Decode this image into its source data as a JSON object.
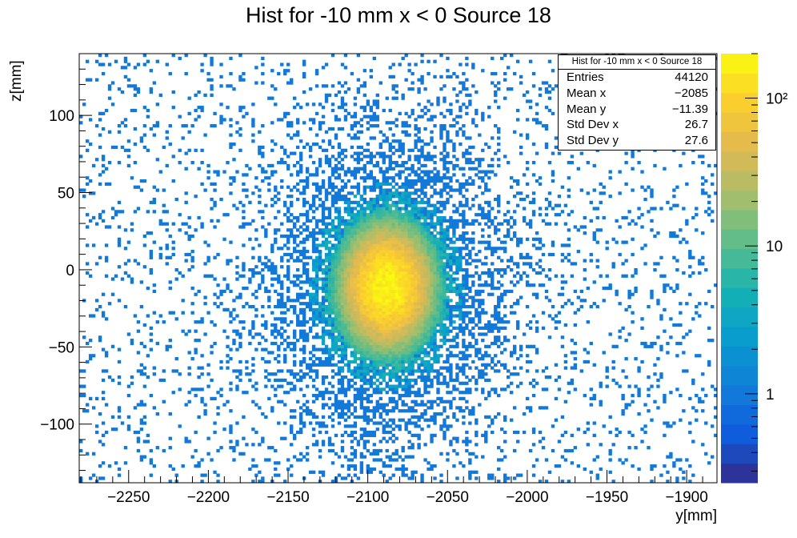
{
  "chart_data": {
    "type": "heatmap",
    "title": "Hist for -10 mm x < 0 Source 18",
    "xlabel": "y[mm]",
    "ylabel": "z[mm]",
    "xlim": [
      -2281,
      -1881
    ],
    "ylim": [
      -138,
      140
    ],
    "xticks": [
      -2250,
      -2200,
      -2150,
      -2100,
      -2050,
      -2000,
      -1950,
      -1900
    ],
    "yticks": [
      -100,
      -50,
      0,
      50,
      100
    ],
    "xtick_labels": [
      "−2250",
      "−2200",
      "−2150",
      "−2100",
      "−2050",
      "−2000",
      "−1950",
      "−1900"
    ],
    "ytick_labels": [
      "−100",
      "−50",
      "0",
      "50",
      "100"
    ],
    "colorbar": {
      "scale": "log",
      "min": 0.25,
      "max": 200,
      "ticks": [
        1,
        10,
        100
      ],
      "tick_labels": [
        "1",
        "10",
        "10²"
      ]
    },
    "blob": {
      "center_x": -2088,
      "center_z": -11,
      "sigma_x": 13,
      "sigma_z": 18,
      "peak_count": 180
    },
    "stats_box": {
      "title": "Hist for -10 mm x < 0 Source 18",
      "rows": [
        {
          "label": "Entries",
          "value": "44120"
        },
        {
          "label": "Mean x",
          "value": "−2085"
        },
        {
          "label": "Mean y",
          "value": "−11.39"
        },
        {
          "label": "Std Dev x",
          "value": "26.7"
        },
        {
          "label": "Std Dev y",
          "value": "27.6"
        }
      ]
    }
  }
}
